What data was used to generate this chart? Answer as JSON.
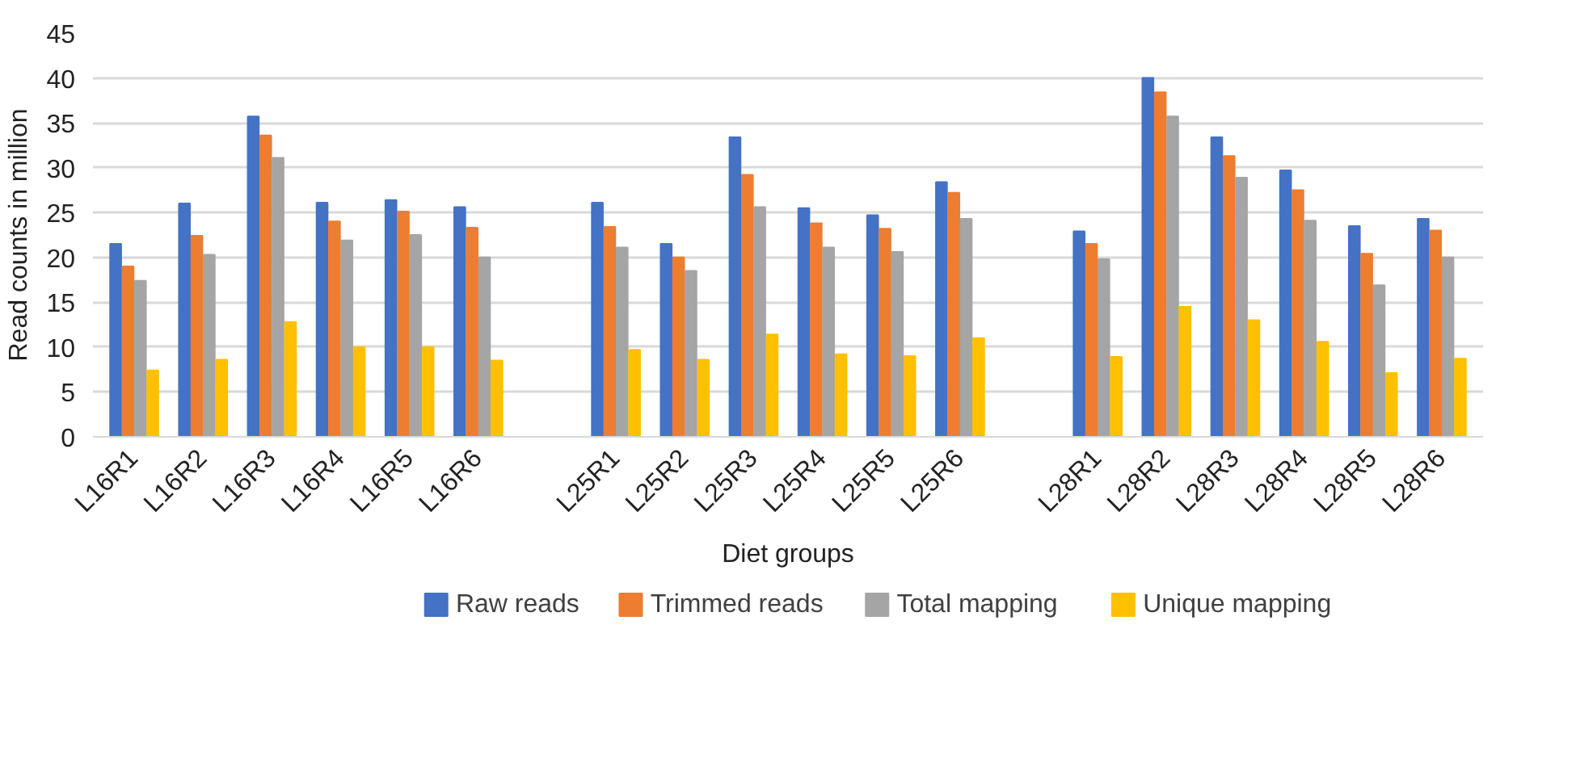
{
  "chart_data": {
    "type": "bar",
    "xlabel": "Diet groups",
    "ylabel": "Read counts in million",
    "categories": [
      "L16R1",
      "L16R2",
      "L16R3",
      "L16R4",
      "L16R5",
      "L16R6",
      null,
      "L25R1",
      "L25R2",
      "L25R3",
      "L25R4",
      "L25R5",
      "L25R6",
      null,
      "L28R1",
      "L28R2",
      "L28R3",
      "L28R4",
      "L28R5",
      "L28R6"
    ],
    "series": [
      {
        "name": "Raw reads",
        "color": "#4472c4",
        "values": [
          21.5,
          26,
          35.7,
          26.1,
          26.4,
          25.6,
          null,
          26.1,
          21.5,
          33.4,
          25.5,
          24.7,
          28.4,
          null,
          22.9,
          40,
          33.4,
          29.7,
          23.5,
          24.3
        ]
      },
      {
        "name": "Trimmed reads",
        "color": "#ed7d31",
        "values": [
          19,
          22.4,
          33.6,
          24,
          25.1,
          23.3,
          null,
          23.4,
          20,
          29.2,
          23.8,
          23.2,
          27.2,
          null,
          21.5,
          38.4,
          31.3,
          27.5,
          20.4,
          23
        ]
      },
      {
        "name": "Total mapping",
        "color": "#a5a5a5",
        "values": [
          17.4,
          20.3,
          31.1,
          21.9,
          22.5,
          20,
          null,
          21.1,
          18.5,
          25.6,
          21.1,
          20.6,
          24.3,
          null,
          19.8,
          35.7,
          28.9,
          24.1,
          16.9,
          20
        ]
      },
      {
        "name": "Unique mapping",
        "color": "#ffc000",
        "values": [
          7.4,
          8.6,
          12.8,
          10,
          10,
          8.5,
          null,
          9.7,
          8.6,
          11.4,
          9.2,
          9,
          11,
          null,
          8.9,
          14.5,
          13,
          10.6,
          7.1,
          8.7
        ]
      }
    ],
    "ylim": [
      0,
      45
    ],
    "yticks": [
      0,
      5,
      10,
      15,
      20,
      25,
      30,
      35,
      40,
      45
    ],
    "grid": "y",
    "legend": "bottom"
  }
}
